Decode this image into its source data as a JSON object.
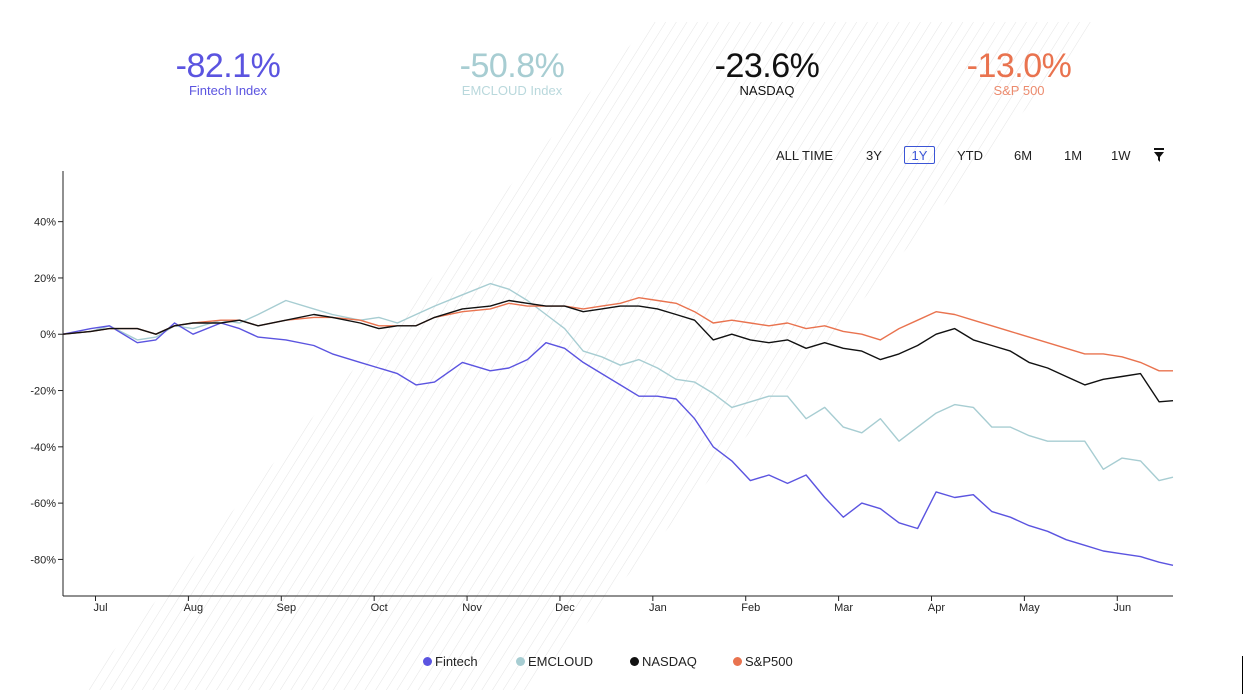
{
  "stats": [
    {
      "value": "-82.1%",
      "label": "Fintech Index",
      "color": "#5b54e0",
      "label_color": "#5b54e0"
    },
    {
      "value": "-50.8%",
      "label": "EMCLOUD Index",
      "color": "#a7cdd2",
      "label_color": "#b9d8dc"
    },
    {
      "value": "-23.6%",
      "label": "NASDAQ",
      "color": "#111111",
      "label_color": "#111111"
    },
    {
      "value": "-13.0%",
      "label": "S&P 500",
      "color": "#e9734f",
      "label_color": "#ec8b6e"
    }
  ],
  "ranges": [
    "ALL TIME",
    "3Y",
    "1Y",
    "YTD",
    "6M",
    "1M",
    "1W"
  ],
  "active_range": "1Y",
  "filter_icon": "funnel-icon",
  "legend": [
    {
      "label": "Fintech",
      "color": "#5b54e0"
    },
    {
      "label": "EMCLOUD",
      "color": "#a7cdd2"
    },
    {
      "label": "NASDAQ",
      "color": "#111111"
    },
    {
      "label": "S&P500",
      "color": "#e9734f"
    }
  ],
  "chart_data": {
    "type": "line",
    "x_unit": "months since start of July",
    "xlim": [
      0,
      11.95
    ],
    "x_ticks": [
      {
        "label": "Jul",
        "x": 0.35
      },
      {
        "label": "Aug",
        "x": 1.35
      },
      {
        "label": "Sep",
        "x": 2.35
      },
      {
        "label": "Oct",
        "x": 3.35
      },
      {
        "label": "Nov",
        "x": 4.35
      },
      {
        "label": "Dec",
        "x": 5.35
      },
      {
        "label": "Jan",
        "x": 6.35
      },
      {
        "label": "Feb",
        "x": 7.35
      },
      {
        "label": "Mar",
        "x": 8.35
      },
      {
        "label": "Apr",
        "x": 9.35
      },
      {
        "label": "May",
        "x": 10.35
      },
      {
        "label": "Jun",
        "x": 11.35
      }
    ],
    "ylim": [
      -93,
      58
    ],
    "y_ticks": [
      {
        "label": "40%",
        "v": 40
      },
      {
        "label": "20%",
        "v": 20
      },
      {
        "label": "0%",
        "v": 0
      },
      {
        "label": "-20%",
        "v": -20
      },
      {
        "label": "-40%",
        "v": -40
      },
      {
        "label": "-60%",
        "v": -60
      },
      {
        "label": "-80%",
        "v": -80
      }
    ],
    "series": [
      {
        "name": "Fintech",
        "color": "#5b54e0",
        "points": [
          [
            0,
            0
          ],
          [
            0.3,
            2
          ],
          [
            0.5,
            3
          ],
          [
            0.8,
            -3
          ],
          [
            1.0,
            -2
          ],
          [
            1.2,
            4
          ],
          [
            1.4,
            0
          ],
          [
            1.7,
            4
          ],
          [
            1.9,
            2
          ],
          [
            2.1,
            -1
          ],
          [
            2.4,
            -2
          ],
          [
            2.7,
            -4
          ],
          [
            2.9,
            -7
          ],
          [
            3.2,
            -10
          ],
          [
            3.4,
            -12
          ],
          [
            3.6,
            -14
          ],
          [
            3.8,
            -18
          ],
          [
            4.0,
            -17
          ],
          [
            4.3,
            -10
          ],
          [
            4.6,
            -13
          ],
          [
            4.8,
            -12
          ],
          [
            5.0,
            -9
          ],
          [
            5.2,
            -3
          ],
          [
            5.4,
            -5
          ],
          [
            5.6,
            -10
          ],
          [
            5.8,
            -14
          ],
          [
            6.0,
            -18
          ],
          [
            6.2,
            -22
          ],
          [
            6.4,
            -22
          ],
          [
            6.6,
            -23
          ],
          [
            6.8,
            -30
          ],
          [
            7.0,
            -40
          ],
          [
            7.2,
            -45
          ],
          [
            7.4,
            -52
          ],
          [
            7.6,
            -50
          ],
          [
            7.8,
            -53
          ],
          [
            8.0,
            -50
          ],
          [
            8.2,
            -58
          ],
          [
            8.4,
            -65
          ],
          [
            8.6,
            -60
          ],
          [
            8.8,
            -62
          ],
          [
            9.0,
            -67
          ],
          [
            9.2,
            -69
          ],
          [
            9.4,
            -56
          ],
          [
            9.6,
            -58
          ],
          [
            9.8,
            -57
          ],
          [
            10.0,
            -63
          ],
          [
            10.2,
            -65
          ],
          [
            10.4,
            -68
          ],
          [
            10.6,
            -70
          ],
          [
            10.8,
            -73
          ],
          [
            11.0,
            -75
          ],
          [
            11.2,
            -77
          ],
          [
            11.4,
            -78
          ],
          [
            11.6,
            -79
          ],
          [
            11.8,
            -81
          ],
          [
            11.95,
            -82.1
          ]
        ]
      },
      {
        "name": "EMCLOUD",
        "color": "#a7cdd2",
        "points": [
          [
            0,
            0
          ],
          [
            0.3,
            1
          ],
          [
            0.5,
            3
          ],
          [
            0.8,
            -2
          ],
          [
            1.0,
            -1
          ],
          [
            1.2,
            3
          ],
          [
            1.4,
            2
          ],
          [
            1.7,
            5
          ],
          [
            1.9,
            4
          ],
          [
            2.1,
            7
          ],
          [
            2.4,
            12
          ],
          [
            2.7,
            9
          ],
          [
            2.9,
            7
          ],
          [
            3.2,
            5
          ],
          [
            3.4,
            6
          ],
          [
            3.6,
            4
          ],
          [
            3.8,
            7
          ],
          [
            4.0,
            10
          ],
          [
            4.3,
            14
          ],
          [
            4.6,
            18
          ],
          [
            4.8,
            16
          ],
          [
            5.0,
            12
          ],
          [
            5.2,
            7
          ],
          [
            5.4,
            2
          ],
          [
            5.6,
            -6
          ],
          [
            5.8,
            -8
          ],
          [
            6.0,
            -11
          ],
          [
            6.2,
            -9
          ],
          [
            6.4,
            -12
          ],
          [
            6.6,
            -16
          ],
          [
            6.8,
            -17
          ],
          [
            7.0,
            -21
          ],
          [
            7.2,
            -26
          ],
          [
            7.4,
            -24
          ],
          [
            7.6,
            -22
          ],
          [
            7.8,
            -22
          ],
          [
            8.0,
            -30
          ],
          [
            8.2,
            -26
          ],
          [
            8.4,
            -33
          ],
          [
            8.6,
            -35
          ],
          [
            8.8,
            -30
          ],
          [
            9.0,
            -38
          ],
          [
            9.2,
            -33
          ],
          [
            9.4,
            -28
          ],
          [
            9.6,
            -25
          ],
          [
            9.8,
            -26
          ],
          [
            10.0,
            -33
          ],
          [
            10.2,
            -33
          ],
          [
            10.4,
            -36
          ],
          [
            10.6,
            -38
          ],
          [
            10.8,
            -38
          ],
          [
            11.0,
            -38
          ],
          [
            11.2,
            -48
          ],
          [
            11.4,
            -44
          ],
          [
            11.6,
            -45
          ],
          [
            11.8,
            -52
          ],
          [
            11.95,
            -50.8
          ]
        ]
      },
      {
        "name": "NASDAQ",
        "color": "#111111",
        "points": [
          [
            0,
            0
          ],
          [
            0.3,
            1
          ],
          [
            0.5,
            2
          ],
          [
            0.8,
            2
          ],
          [
            1.0,
            0
          ],
          [
            1.2,
            3
          ],
          [
            1.4,
            4
          ],
          [
            1.7,
            4
          ],
          [
            1.9,
            5
          ],
          [
            2.1,
            3
          ],
          [
            2.4,
            5
          ],
          [
            2.7,
            7
          ],
          [
            2.9,
            6
          ],
          [
            3.2,
            4
          ],
          [
            3.4,
            2
          ],
          [
            3.6,
            3
          ],
          [
            3.8,
            3
          ],
          [
            4.0,
            6
          ],
          [
            4.3,
            9
          ],
          [
            4.6,
            10
          ],
          [
            4.8,
            12
          ],
          [
            5.0,
            11
          ],
          [
            5.2,
            10
          ],
          [
            5.4,
            10
          ],
          [
            5.6,
            8
          ],
          [
            5.8,
            9
          ],
          [
            6.0,
            10
          ],
          [
            6.2,
            10
          ],
          [
            6.4,
            9
          ],
          [
            6.6,
            7
          ],
          [
            6.8,
            5
          ],
          [
            7.0,
            -2
          ],
          [
            7.2,
            0
          ],
          [
            7.4,
            -2
          ],
          [
            7.6,
            -3
          ],
          [
            7.8,
            -2
          ],
          [
            8.0,
            -5
          ],
          [
            8.2,
            -3
          ],
          [
            8.4,
            -5
          ],
          [
            8.6,
            -6
          ],
          [
            8.8,
            -9
          ],
          [
            9.0,
            -7
          ],
          [
            9.2,
            -4
          ],
          [
            9.4,
            0
          ],
          [
            9.6,
            2
          ],
          [
            9.8,
            -2
          ],
          [
            10.0,
            -4
          ],
          [
            10.2,
            -6
          ],
          [
            10.4,
            -10
          ],
          [
            10.6,
            -12
          ],
          [
            10.8,
            -15
          ],
          [
            11.0,
            -18
          ],
          [
            11.2,
            -16
          ],
          [
            11.4,
            -15
          ],
          [
            11.6,
            -14
          ],
          [
            11.8,
            -24
          ],
          [
            11.95,
            -23.6
          ]
        ]
      },
      {
        "name": "S&P500",
        "color": "#e9734f",
        "points": [
          [
            0,
            0
          ],
          [
            0.3,
            1
          ],
          [
            0.5,
            2
          ],
          [
            0.8,
            2
          ],
          [
            1.0,
            0
          ],
          [
            1.2,
            3
          ],
          [
            1.4,
            4
          ],
          [
            1.7,
            5
          ],
          [
            1.9,
            5
          ],
          [
            2.1,
            3
          ],
          [
            2.4,
            5
          ],
          [
            2.7,
            6
          ],
          [
            2.9,
            6
          ],
          [
            3.2,
            5
          ],
          [
            3.4,
            3
          ],
          [
            3.6,
            3
          ],
          [
            3.8,
            3
          ],
          [
            4.0,
            6
          ],
          [
            4.3,
            8
          ],
          [
            4.6,
            9
          ],
          [
            4.8,
            11
          ],
          [
            5.0,
            10
          ],
          [
            5.2,
            10
          ],
          [
            5.4,
            10
          ],
          [
            5.6,
            9
          ],
          [
            5.8,
            10
          ],
          [
            6.0,
            11
          ],
          [
            6.2,
            13
          ],
          [
            6.4,
            12
          ],
          [
            6.6,
            11
          ],
          [
            6.8,
            8
          ],
          [
            7.0,
            4
          ],
          [
            7.2,
            5
          ],
          [
            7.4,
            4
          ],
          [
            7.6,
            3
          ],
          [
            7.8,
            4
          ],
          [
            8.0,
            2
          ],
          [
            8.2,
            3
          ],
          [
            8.4,
            1
          ],
          [
            8.6,
            0
          ],
          [
            8.8,
            -2
          ],
          [
            9.0,
            2
          ],
          [
            9.2,
            5
          ],
          [
            9.4,
            8
          ],
          [
            9.6,
            7
          ],
          [
            9.8,
            5
          ],
          [
            10.0,
            3
          ],
          [
            10.2,
            1
          ],
          [
            10.4,
            -1
          ],
          [
            10.6,
            -3
          ],
          [
            10.8,
            -5
          ],
          [
            11.0,
            -7
          ],
          [
            11.2,
            -7
          ],
          [
            11.4,
            -8
          ],
          [
            11.6,
            -10
          ],
          [
            11.8,
            -13
          ],
          [
            11.95,
            -13.0
          ]
        ]
      }
    ]
  }
}
